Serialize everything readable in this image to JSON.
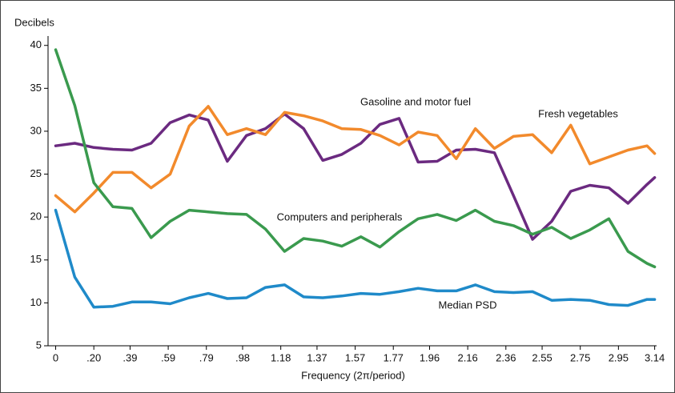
{
  "chart_data": {
    "type": "line",
    "y_label": "Decibels",
    "x_label": "Frequency (2π/period)",
    "x": [
      0,
      0.1,
      0.2,
      0.3,
      0.4,
      0.5,
      0.6,
      0.7,
      0.8,
      0.9,
      1.0,
      1.1,
      1.2,
      1.3,
      1.4,
      1.5,
      1.6,
      1.7,
      1.8,
      1.9,
      2.0,
      2.1,
      2.2,
      2.3,
      2.4,
      2.5,
      2.6,
      2.7,
      2.8,
      2.9,
      3.0,
      3.1,
      3.14
    ],
    "series": [
      {
        "name": "Gasoline and motor fuel",
        "color": "#6b2a80",
        "values": [
          28.3,
          28.6,
          28.1,
          27.9,
          27.8,
          28.6,
          31.0,
          31.9,
          31.3,
          26.5,
          29.5,
          30.3,
          32.0,
          30.3,
          26.6,
          27.3,
          28.6,
          30.8,
          31.5,
          26.4,
          26.5,
          27.8,
          27.9,
          27.5,
          22.5,
          17.4,
          19.5,
          23.0,
          23.7,
          23.4,
          21.6,
          23.8,
          24.6
        ]
      },
      {
        "name": "Fresh vegetables",
        "color": "#f28a2c",
        "values": [
          22.5,
          20.6,
          22.8,
          25.2,
          25.2,
          23.4,
          25.0,
          30.6,
          32.9,
          29.6,
          30.3,
          29.6,
          32.2,
          31.8,
          31.2,
          30.3,
          30.2,
          29.5,
          28.4,
          29.9,
          29.5,
          26.8,
          30.3,
          28.0,
          29.4,
          29.6,
          27.5,
          30.7,
          26.2,
          27.0,
          27.8,
          28.3,
          27.4
        ]
      },
      {
        "name": "Computers and peripherals",
        "color": "#3a9a4e",
        "values": [
          39.5,
          33.0,
          24.0,
          21.2,
          21.0,
          17.6,
          19.5,
          20.8,
          20.6,
          20.4,
          20.3,
          18.6,
          16.0,
          17.5,
          17.2,
          16.6,
          17.7,
          16.5,
          18.3,
          19.8,
          20.3,
          19.6,
          20.8,
          19.5,
          19.0,
          18.0,
          18.8,
          17.5,
          18.5,
          19.8,
          16.0,
          14.6,
          14.2
        ]
      },
      {
        "name": "Median PSD",
        "color": "#1f8ac9",
        "values": [
          20.8,
          13.0,
          9.5,
          9.6,
          10.1,
          10.1,
          9.9,
          10.6,
          11.1,
          10.5,
          10.6,
          11.8,
          12.1,
          10.7,
          10.6,
          10.8,
          11.1,
          11.0,
          11.3,
          11.7,
          11.4,
          11.4,
          12.1,
          11.3,
          11.2,
          11.3,
          10.3,
          10.4,
          10.3,
          9.8,
          9.7,
          10.4,
          10.4
        ]
      }
    ],
    "xlim": [
      -0.04,
      3.15
    ],
    "xticks": [
      0,
      {
        "value": 0.2,
        "label": ".20"
      },
      {
        "value": 0.39,
        "label": ".39"
      },
      {
        "value": 0.59,
        "label": ".59"
      },
      {
        "value": 0.79,
        "label": ".79"
      },
      {
        "value": 0.98,
        "label": ".98"
      },
      1.18,
      1.37,
      1.57,
      1.77,
      1.96,
      2.16,
      2.36,
      2.55,
      2.75,
      2.95,
      3.14
    ],
    "ylim": [
      5,
      41
    ],
    "yticks": [
      5,
      10,
      15,
      20,
      25,
      30,
      35,
      40
    ],
    "grid": false
  }
}
